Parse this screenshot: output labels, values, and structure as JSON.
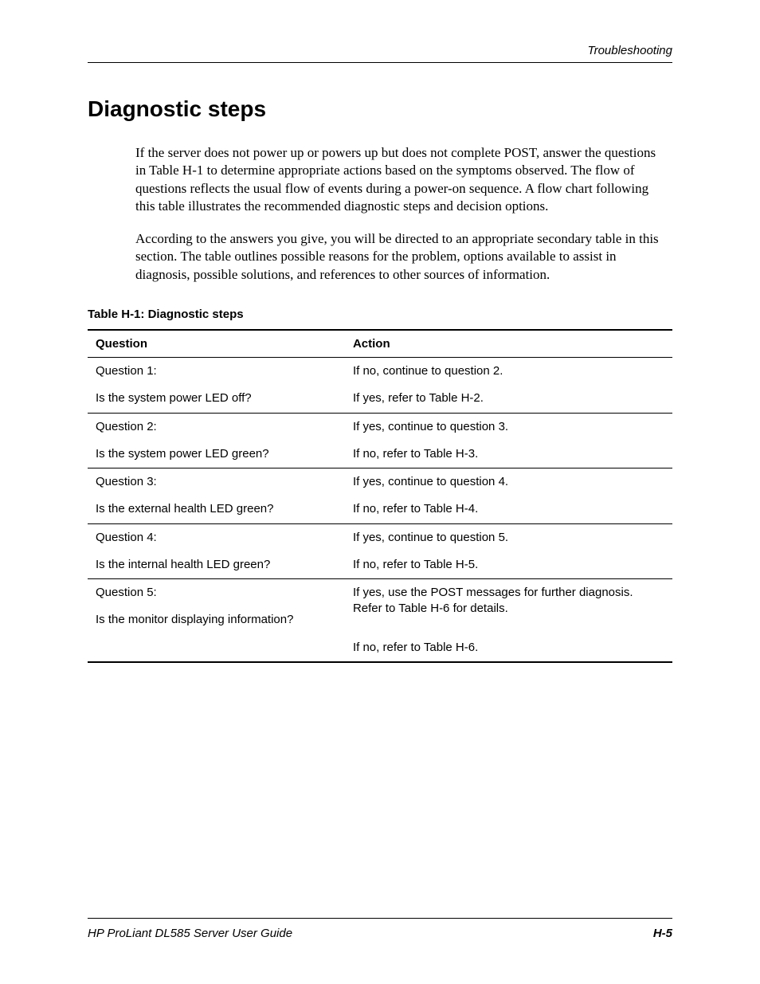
{
  "colors": {
    "text": "#000000",
    "background": "#ffffff",
    "rule": "#000000"
  },
  "fonts": {
    "body_family": "Times New Roman",
    "ui_family": "Arial",
    "body_size_pt": 12,
    "heading_size_pt": 21,
    "table_size_pt": 11
  },
  "header": {
    "running_title": "Troubleshooting"
  },
  "section": {
    "title": "Diagnostic steps",
    "paragraphs": [
      "If the server does not power up or powers up but does not complete POST, answer the questions in Table H-1 to determine appropriate actions based on the symptoms observed. The flow of questions reflects the usual flow of events during a power-on sequence. A flow chart following this table illustrates the recommended diagnostic steps and decision options.",
      "According to the answers you give, you will be directed to an appropriate secondary table in this section. The table outlines possible reasons for the problem, options available to assist in diagnosis, possible solutions, and references to other sources of information."
    ]
  },
  "table": {
    "caption": "Table H-1:  Diagnostic steps",
    "columns": [
      "Question",
      "Action"
    ],
    "col_widths_pct": [
      44,
      56
    ],
    "rows": [
      {
        "question_lines": [
          "Question 1:",
          "Is the system power LED off?"
        ],
        "action_lines": [
          "If no, continue to question 2.",
          "If yes, refer to Table H-2."
        ]
      },
      {
        "question_lines": [
          "Question 2:",
          "Is the system power LED green?"
        ],
        "action_lines": [
          "If yes, continue to question 3.",
          "If no, refer to Table H-3."
        ]
      },
      {
        "question_lines": [
          "Question 3:",
          "Is the external health LED green?"
        ],
        "action_lines": [
          "If yes, continue to question 4.",
          "If no, refer to Table H-4."
        ]
      },
      {
        "question_lines": [
          "Question 4:",
          "Is the internal health LED green?"
        ],
        "action_lines": [
          "If yes, continue to question 5.",
          "If no, refer to Table H-5."
        ]
      },
      {
        "question_lines": [
          "Question 5:",
          "Is the monitor displaying information?"
        ],
        "action_lines": [
          "If yes, use the POST messages for further diagnosis. Refer to Table H-6 for details.",
          "If no, refer to Table H-6."
        ]
      }
    ]
  },
  "footer": {
    "doc_title": "HP ProLiant DL585 Server User Guide",
    "page_number": "H-5"
  }
}
